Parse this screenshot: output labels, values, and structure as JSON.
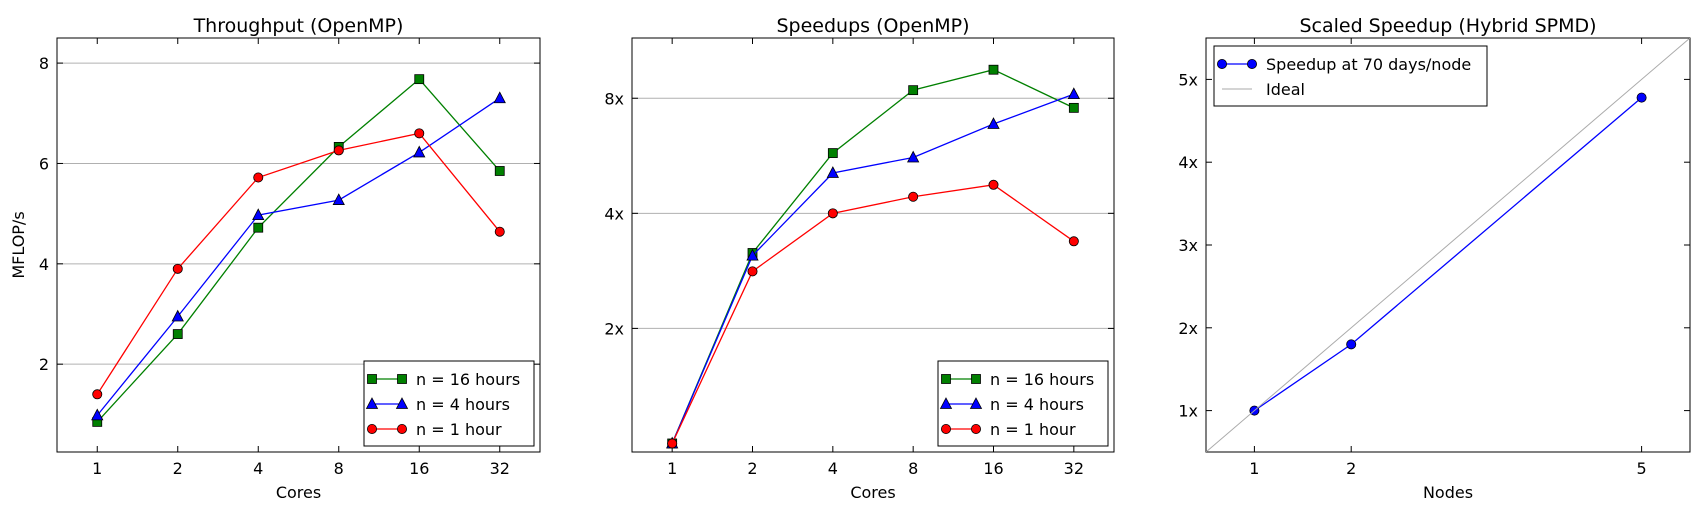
{
  "chart_data": [
    {
      "type": "line",
      "title": "Throughput (OpenMP)",
      "xlabel": "Cores",
      "ylabel": "MFLOP/s",
      "x_scale": "log2",
      "x": [
        1,
        2,
        4,
        8,
        16,
        32
      ],
      "x_tick_labels": [
        "1",
        "2",
        "4",
        "8",
        "16",
        "32"
      ],
      "y_scale": "linear",
      "ylim": [
        0.25,
        8.5
      ],
      "y_ticks": [
        2,
        4,
        6,
        8
      ],
      "y_tick_labels": [
        "2",
        "4",
        "6",
        "8"
      ],
      "grid": "y",
      "legend": "lower right",
      "series": [
        {
          "name": "n = 16 hours",
          "color": "#008000",
          "marker": "square",
          "values": [
            0.85,
            2.6,
            4.72,
            6.33,
            7.68,
            5.85
          ]
        },
        {
          "name": "n = 4 hours",
          "color": "#0000ff",
          "marker": "triangle",
          "values": [
            0.98,
            2.95,
            4.97,
            5.27,
            6.22,
            7.3
          ]
        },
        {
          "name": "n = 1 hour",
          "color": "#ff0000",
          "marker": "circle",
          "values": [
            1.4,
            3.9,
            5.72,
            6.26,
            6.6,
            4.64
          ]
        }
      ]
    },
    {
      "type": "line",
      "title": "Speedups (OpenMP)",
      "xlabel": "Cores",
      "ylabel": "",
      "x_scale": "log2",
      "x": [
        1,
        2,
        4,
        8,
        16,
        32
      ],
      "x_tick_labels": [
        "1",
        "2",
        "4",
        "8",
        "16",
        "32"
      ],
      "y_scale": "log2",
      "ylim": [
        0.95,
        11.5
      ],
      "y_ticks": [
        2,
        4,
        8
      ],
      "y_tick_labels": [
        "2x",
        "4x",
        "8x"
      ],
      "grid": "y",
      "legend": "lower right",
      "series": [
        {
          "name": "n = 16 hours",
          "color": "#008000",
          "marker": "square",
          "values": [
            1.0,
            3.15,
            5.75,
            8.4,
            9.5,
            7.55
          ]
        },
        {
          "name": "n = 4 hours",
          "color": "#0000ff",
          "marker": "triangle",
          "values": [
            1.0,
            3.1,
            5.1,
            5.6,
            6.85,
            8.2
          ]
        },
        {
          "name": "n = 1 hour",
          "color": "#ff0000",
          "marker": "circle",
          "values": [
            1.0,
            2.82,
            4.0,
            4.42,
            4.75,
            3.38
          ]
        }
      ]
    },
    {
      "type": "line",
      "title": "Scaled Speedup (Hybrid SPMD)",
      "xlabel": "Nodes",
      "ylabel": "",
      "x_scale": "linear",
      "xlim": [
        0.5,
        5.5
      ],
      "x_ticks": [
        1,
        2,
        5
      ],
      "x_tick_labels": [
        "1",
        "2",
        "5"
      ],
      "y_scale": "linear",
      "ylim": [
        0.5,
        5.5
      ],
      "y_ticks": [
        1,
        2,
        3,
        4,
        5
      ],
      "y_tick_labels": [
        "1x",
        "2x",
        "3x",
        "4x",
        "5x"
      ],
      "grid": "none",
      "legend": "upper left",
      "series": [
        {
          "name": "Speedup at 70 days/node",
          "color": "#0000ff",
          "marker": "circle",
          "x": [
            1,
            2,
            5
          ],
          "values": [
            1.0,
            1.8,
            4.78
          ]
        },
        {
          "name": "Ideal",
          "color": "#aaaaaa",
          "marker": "none",
          "x": [
            0.5,
            5.5
          ],
          "values": [
            0.5,
            5.5
          ]
        }
      ]
    }
  ]
}
